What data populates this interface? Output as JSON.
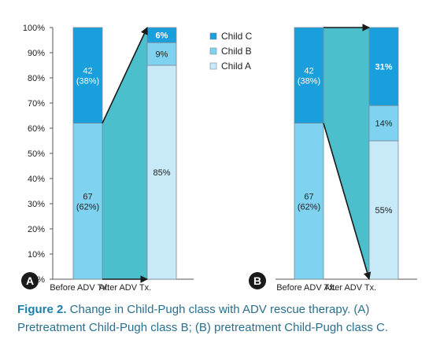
{
  "chart_data": [
    {
      "type": "bar",
      "stacked": true,
      "panel_label": "A",
      "categories": [
        "Before ADV Tx.",
        "After ADV Tx."
      ],
      "series": [
        {
          "name": "Child A",
          "values": [
            0,
            85
          ],
          "data_labels": [
            "",
            "85%"
          ]
        },
        {
          "name": "Child B",
          "values": [
            62,
            9
          ],
          "data_labels": [
            "67\n(62%)",
            "9%"
          ]
        },
        {
          "name": "Child C",
          "values": [
            38,
            6
          ],
          "data_labels": [
            "42\n(38%)",
            "6%"
          ]
        }
      ],
      "yticks": [
        "0%",
        "10%",
        "20%",
        "30%",
        "40%",
        "50%",
        "60%",
        "70%",
        "80%",
        "90%",
        "100%"
      ],
      "ylim": [
        0,
        100
      ],
      "legend_position": "top-right"
    },
    {
      "type": "bar",
      "stacked": true,
      "panel_label": "B",
      "categories": [
        "Before ADV Tx.",
        "After ADV Tx."
      ],
      "series": [
        {
          "name": "Child A",
          "values": [
            0,
            55
          ],
          "data_labels": [
            "",
            "55%"
          ]
        },
        {
          "name": "Child B",
          "values": [
            62,
            14
          ],
          "data_labels": [
            "67\n(62%)",
            "14%"
          ]
        },
        {
          "name": "Child C",
          "values": [
            38,
            31
          ],
          "data_labels": [
            "42\n(38%)",
            "31%"
          ]
        }
      ],
      "ylim": [
        0,
        100
      ]
    }
  ],
  "colors": {
    "child_a": "#c8e9f7",
    "child_b": "#7fd3f1",
    "child_c": "#1a9fdd",
    "flow": "#4bbfcc",
    "badge": "#1a1a1a",
    "caption": "#2b6f8e"
  },
  "caption": {
    "label": "Figure 2.",
    "text": " Change in Child-Pugh class with ADV rescue therapy. (A) Pretreatment Child-Pugh class B; (B) pretreatment Child-Pugh class C."
  }
}
